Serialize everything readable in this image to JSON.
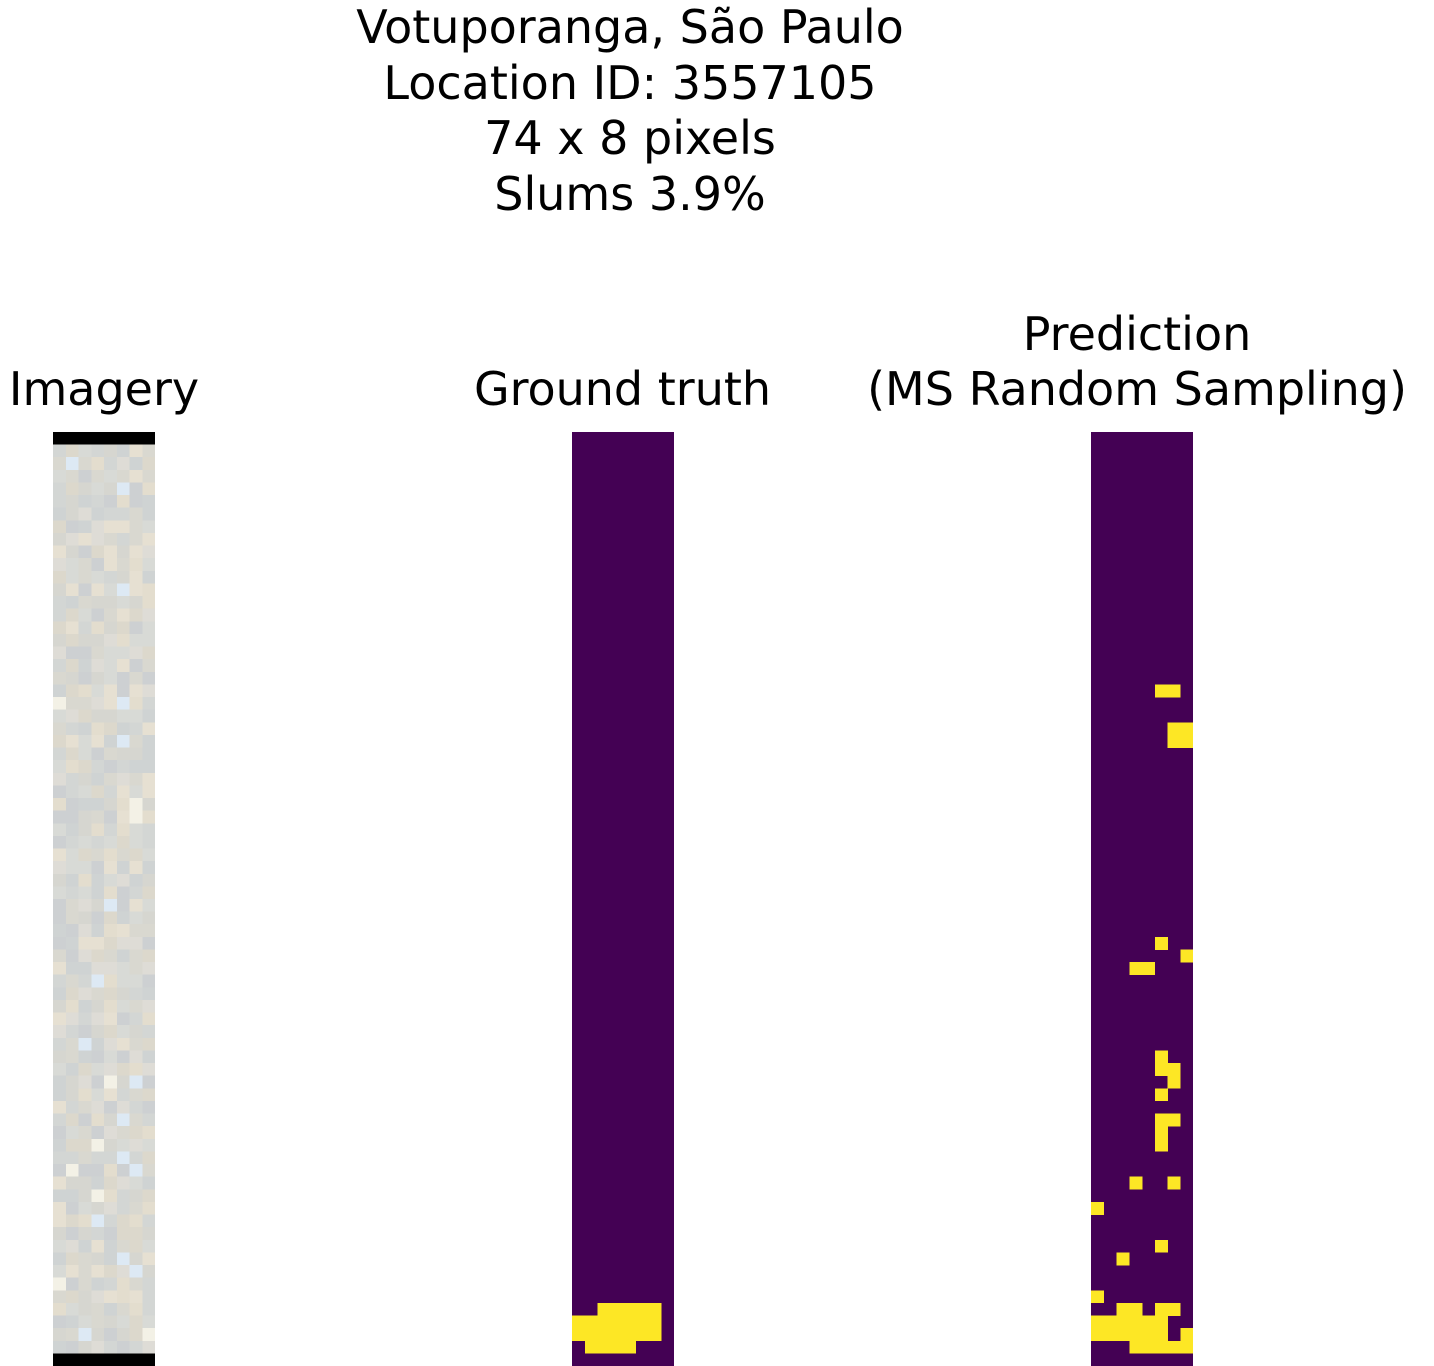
{
  "figure": {
    "title_lines": [
      "Votuporanga, São Paulo",
      "Location ID: 3557105",
      "74 x 8 pixels",
      "Slums 3.9%"
    ]
  },
  "panels": [
    {
      "id": "imagery",
      "title_lines": [
        "Imagery"
      ]
    },
    {
      "id": "ground_truth",
      "title_lines": [
        "Ground truth"
      ]
    },
    {
      "id": "prediction",
      "title_lines": [
        "Prediction",
        "(MS Random Sampling)"
      ]
    }
  ],
  "grid": {
    "rows": 74,
    "cols": 8
  },
  "colors": {
    "background_class": "#440154",
    "slum_class": "#fde725",
    "nodata": "#000000"
  },
  "ground_truth_slum_cells": [
    [
      69,
      2
    ],
    [
      69,
      3
    ],
    [
      69,
      4
    ],
    [
      69,
      5
    ],
    [
      69,
      6
    ],
    [
      70,
      0
    ],
    [
      70,
      1
    ],
    [
      70,
      2
    ],
    [
      70,
      3
    ],
    [
      70,
      4
    ],
    [
      70,
      5
    ],
    [
      70,
      6
    ],
    [
      71,
      0
    ],
    [
      71,
      1
    ],
    [
      71,
      2
    ],
    [
      71,
      3
    ],
    [
      71,
      4
    ],
    [
      71,
      5
    ],
    [
      71,
      6
    ],
    [
      72,
      1
    ],
    [
      72,
      2
    ],
    [
      72,
      3
    ],
    [
      72,
      4
    ]
  ],
  "prediction_slum_cells": [
    [
      20,
      5
    ],
    [
      20,
      6
    ],
    [
      23,
      6
    ],
    [
      23,
      7
    ],
    [
      24,
      6
    ],
    [
      24,
      7
    ],
    [
      40,
      5
    ],
    [
      41,
      7
    ],
    [
      42,
      3
    ],
    [
      42,
      4
    ],
    [
      49,
      5
    ],
    [
      50,
      5
    ],
    [
      50,
      6
    ],
    [
      51,
      6
    ],
    [
      52,
      5
    ],
    [
      54,
      5
    ],
    [
      54,
      6
    ],
    [
      55,
      5
    ],
    [
      56,
      5
    ],
    [
      59,
      3
    ],
    [
      59,
      6
    ],
    [
      61,
      0
    ],
    [
      64,
      5
    ],
    [
      65,
      2
    ],
    [
      68,
      0
    ],
    [
      69,
      2
    ],
    [
      69,
      3
    ],
    [
      69,
      5
    ],
    [
      69,
      6
    ],
    [
      70,
      0
    ],
    [
      70,
      1
    ],
    [
      70,
      2
    ],
    [
      70,
      3
    ],
    [
      70,
      4
    ],
    [
      70,
      5
    ],
    [
      71,
      0
    ],
    [
      71,
      1
    ],
    [
      71,
      2
    ],
    [
      71,
      3
    ],
    [
      71,
      4
    ],
    [
      71,
      5
    ],
    [
      71,
      7
    ],
    [
      72,
      3
    ],
    [
      72,
      4
    ],
    [
      72,
      5
    ],
    [
      72,
      6
    ],
    [
      72,
      7
    ]
  ],
  "imagery_nodata_rows": [
    0,
    73
  ]
}
